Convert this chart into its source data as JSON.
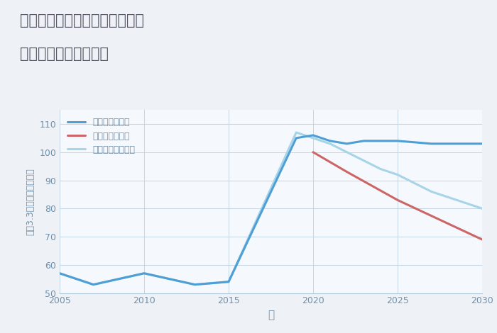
{
  "title_line1": "愛知県名古屋市中村区森末町の",
  "title_line2": "中古戸建ての価格推移",
  "xlabel": "年",
  "ylabel": "坪（3.3㎡）単価（万円）",
  "background_color": "#eef2f7",
  "plot_bg_color": "#f5f8fc",
  "good_scenario": {
    "label": "グッドシナリオ",
    "color": "#4d9fd6",
    "years": [
      2005,
      2007,
      2010,
      2013,
      2015,
      2019,
      2020,
      2021,
      2022,
      2023,
      2024,
      2025,
      2027,
      2030
    ],
    "values": [
      57,
      53,
      57,
      53,
      54,
      105,
      106,
      104,
      103,
      104,
      104,
      104,
      103,
      103
    ]
  },
  "bad_scenario": {
    "label": "バッドシナリオ",
    "color": "#cc6666",
    "years": [
      2020,
      2022,
      2025,
      2030
    ],
    "values": [
      100,
      93,
      83,
      69
    ]
  },
  "normal_scenario": {
    "label": "ノーマルシナリオ",
    "color": "#a8d4e8",
    "years": [
      2005,
      2007,
      2010,
      2013,
      2015,
      2019,
      2020,
      2021,
      2022,
      2023,
      2024,
      2025,
      2027,
      2030
    ],
    "values": [
      57,
      53,
      57,
      53,
      54,
      107,
      105,
      103,
      100,
      97,
      94,
      92,
      86,
      80
    ]
  },
  "ylim": [
    50,
    115
  ],
  "xlim": [
    2005,
    2030
  ],
  "yticks": [
    50,
    60,
    70,
    80,
    90,
    100,
    110
  ],
  "xticks": [
    2005,
    2010,
    2015,
    2020,
    2025,
    2030
  ],
  "grid_color": "#c5d5e5",
  "title_color": "#555566",
  "axis_color": "#7090aa",
  "tick_color": "#7090aa",
  "linewidth": 2.2
}
